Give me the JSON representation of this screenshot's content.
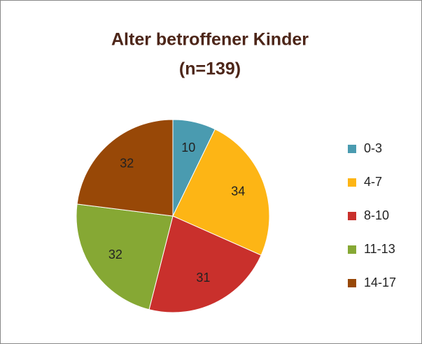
{
  "chart_data": {
    "type": "pie",
    "title": "Alter betroffener Kinder",
    "subtitle": "(n=139)",
    "categories": [
      "0-3",
      "4-7",
      "8-10",
      "11-13",
      "14-17"
    ],
    "values": [
      10,
      34,
      31,
      32,
      32
    ],
    "colors": [
      "#4a9bb0",
      "#fdb515",
      "#c9302c",
      "#86a834",
      "#984807"
    ],
    "legend": "right"
  }
}
